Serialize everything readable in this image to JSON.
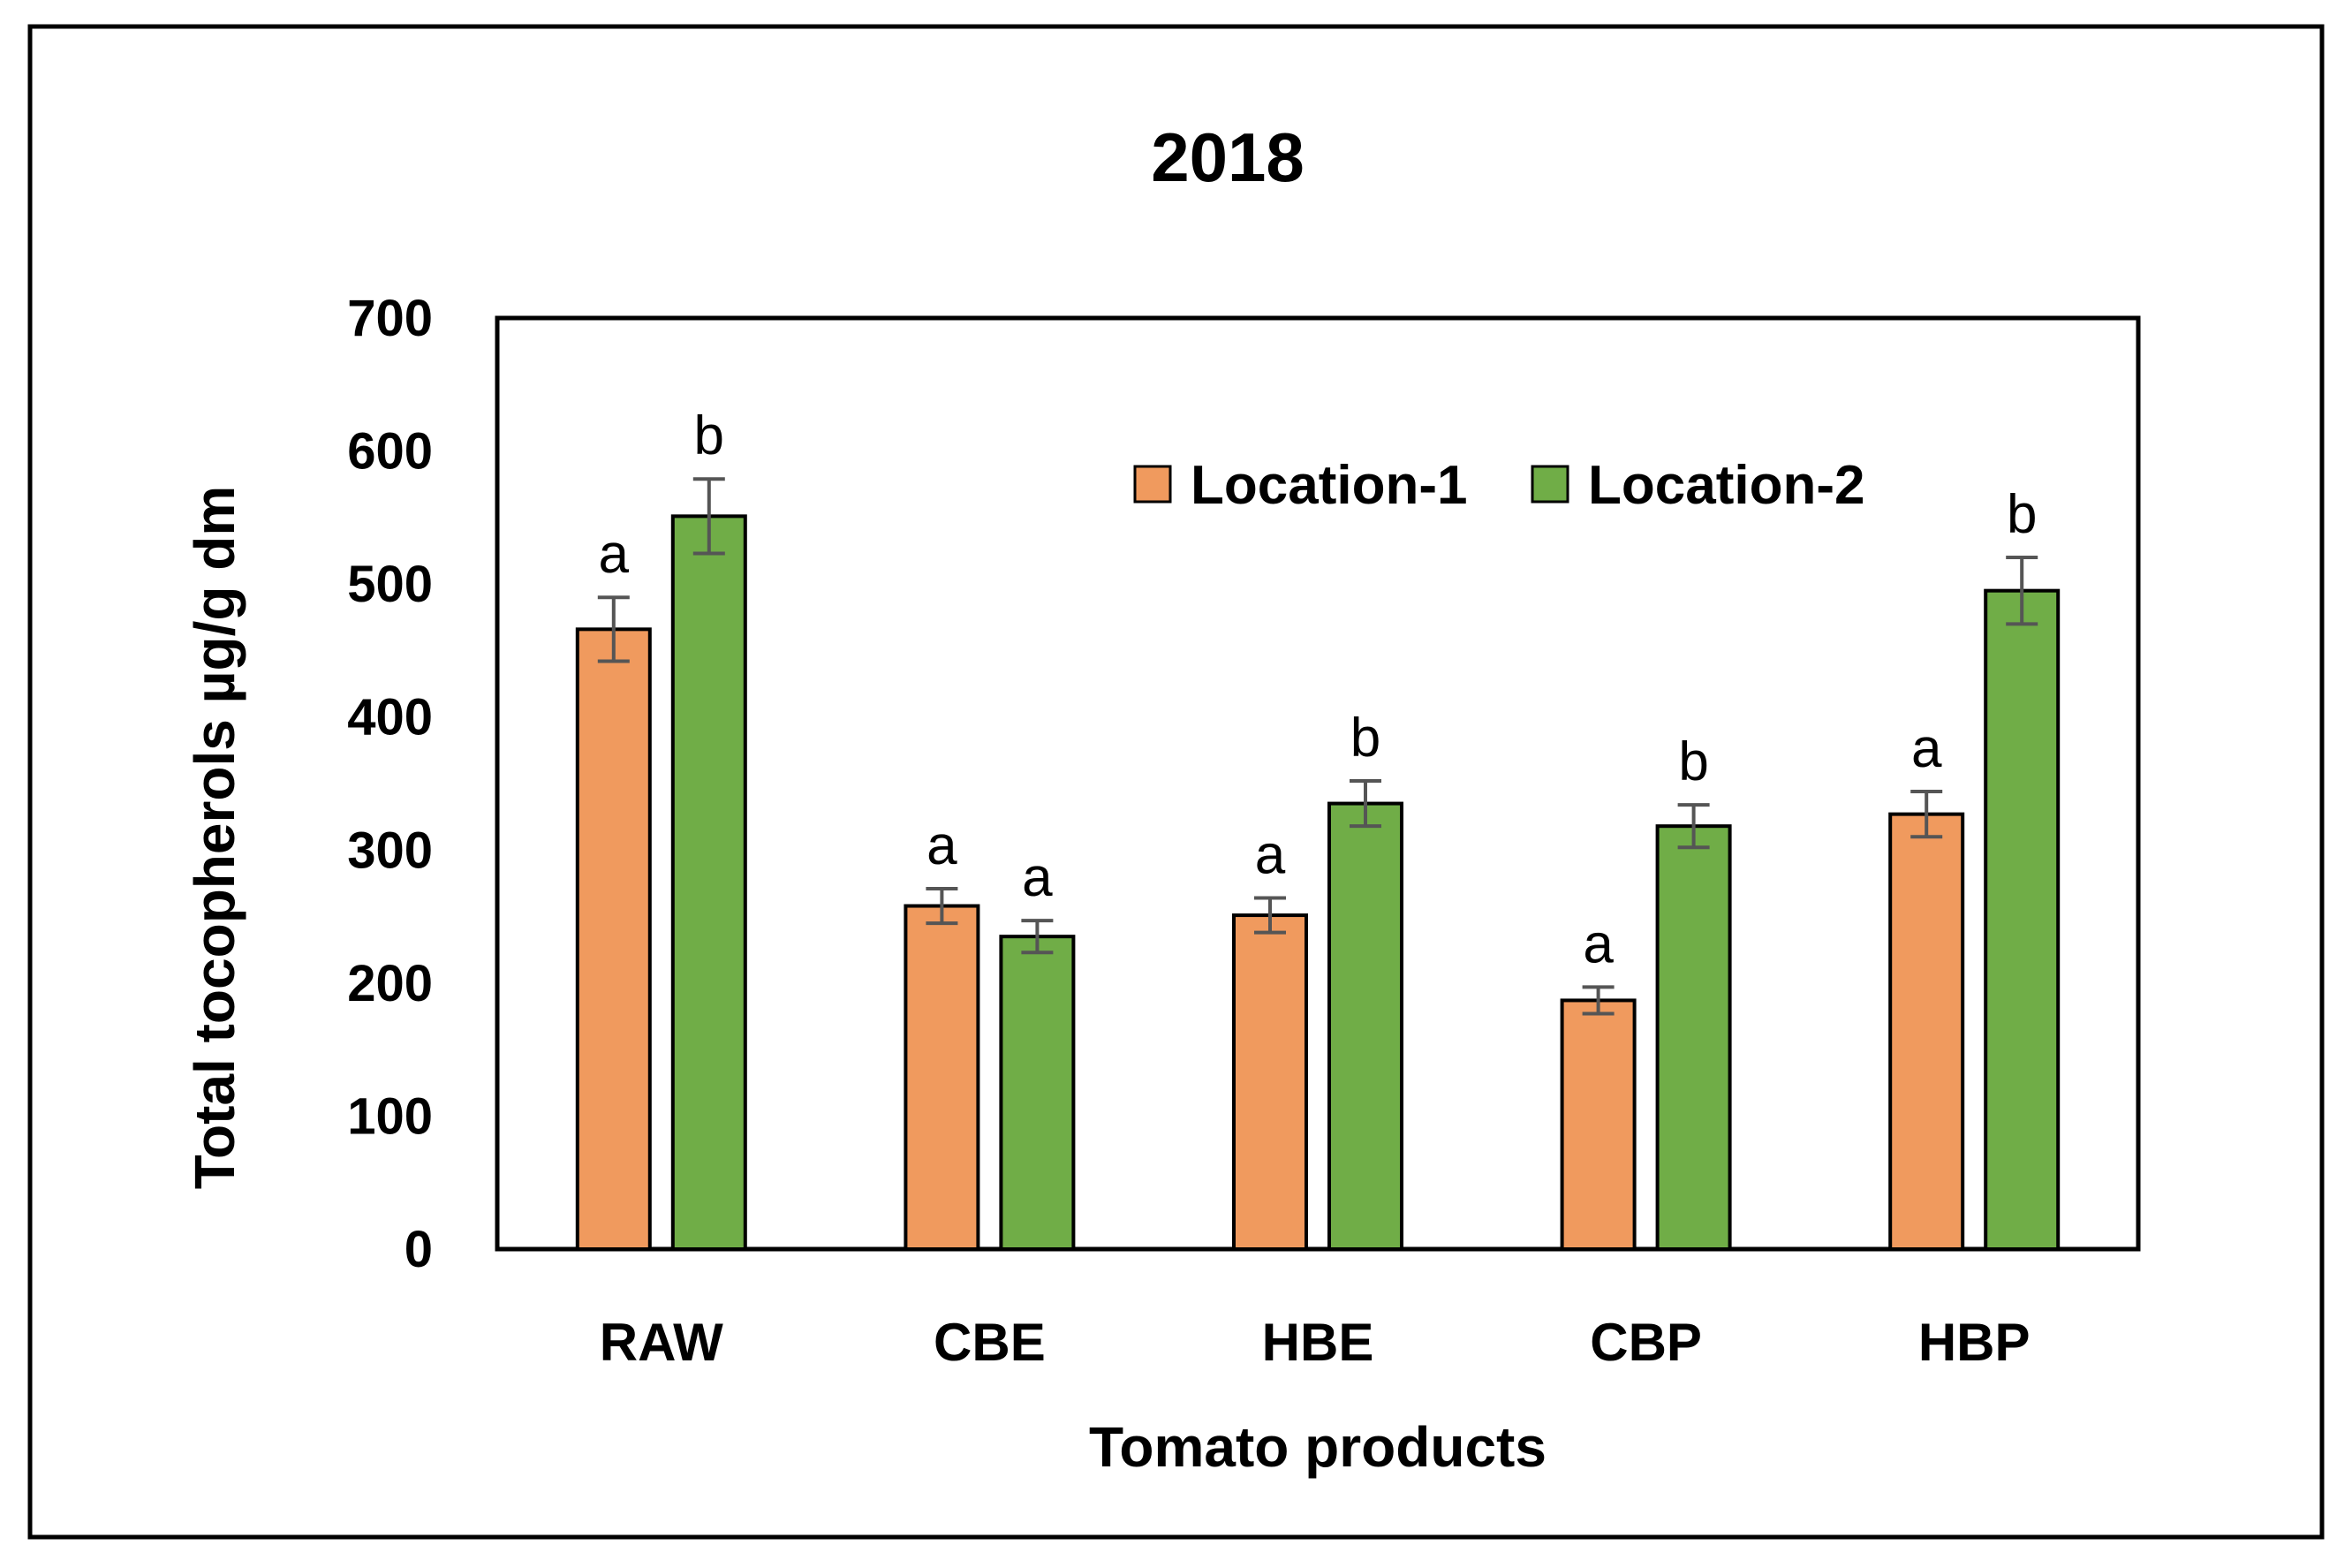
{
  "chart_data": {
    "type": "bar",
    "title": "2018",
    "xlabel": "Tomato products",
    "ylabel": "Total tocopherols µg/g dm",
    "ylim": [
      0,
      700
    ],
    "yticks": [
      0,
      100,
      200,
      300,
      400,
      500,
      600,
      700
    ],
    "categories": [
      "RAW",
      "CBE",
      "HBE",
      "CBP",
      "HBP"
    ],
    "series": [
      {
        "name": "Location-1",
        "color": "#f09a5e",
        "values": [
          466,
          258,
          251,
          187,
          327
        ],
        "errors": [
          24,
          13,
          13,
          10,
          17
        ],
        "labels": [
          "a",
          "a",
          "a",
          "a",
          "a"
        ]
      },
      {
        "name": "Location-2",
        "color": "#70ad47",
        "values": [
          551,
          235,
          335,
          318,
          495
        ],
        "errors": [
          28,
          12,
          17,
          16,
          25
        ],
        "labels": [
          "b",
          "a",
          "b",
          "b",
          "b"
        ]
      }
    ],
    "legend_position": "top-right",
    "grid": false
  }
}
